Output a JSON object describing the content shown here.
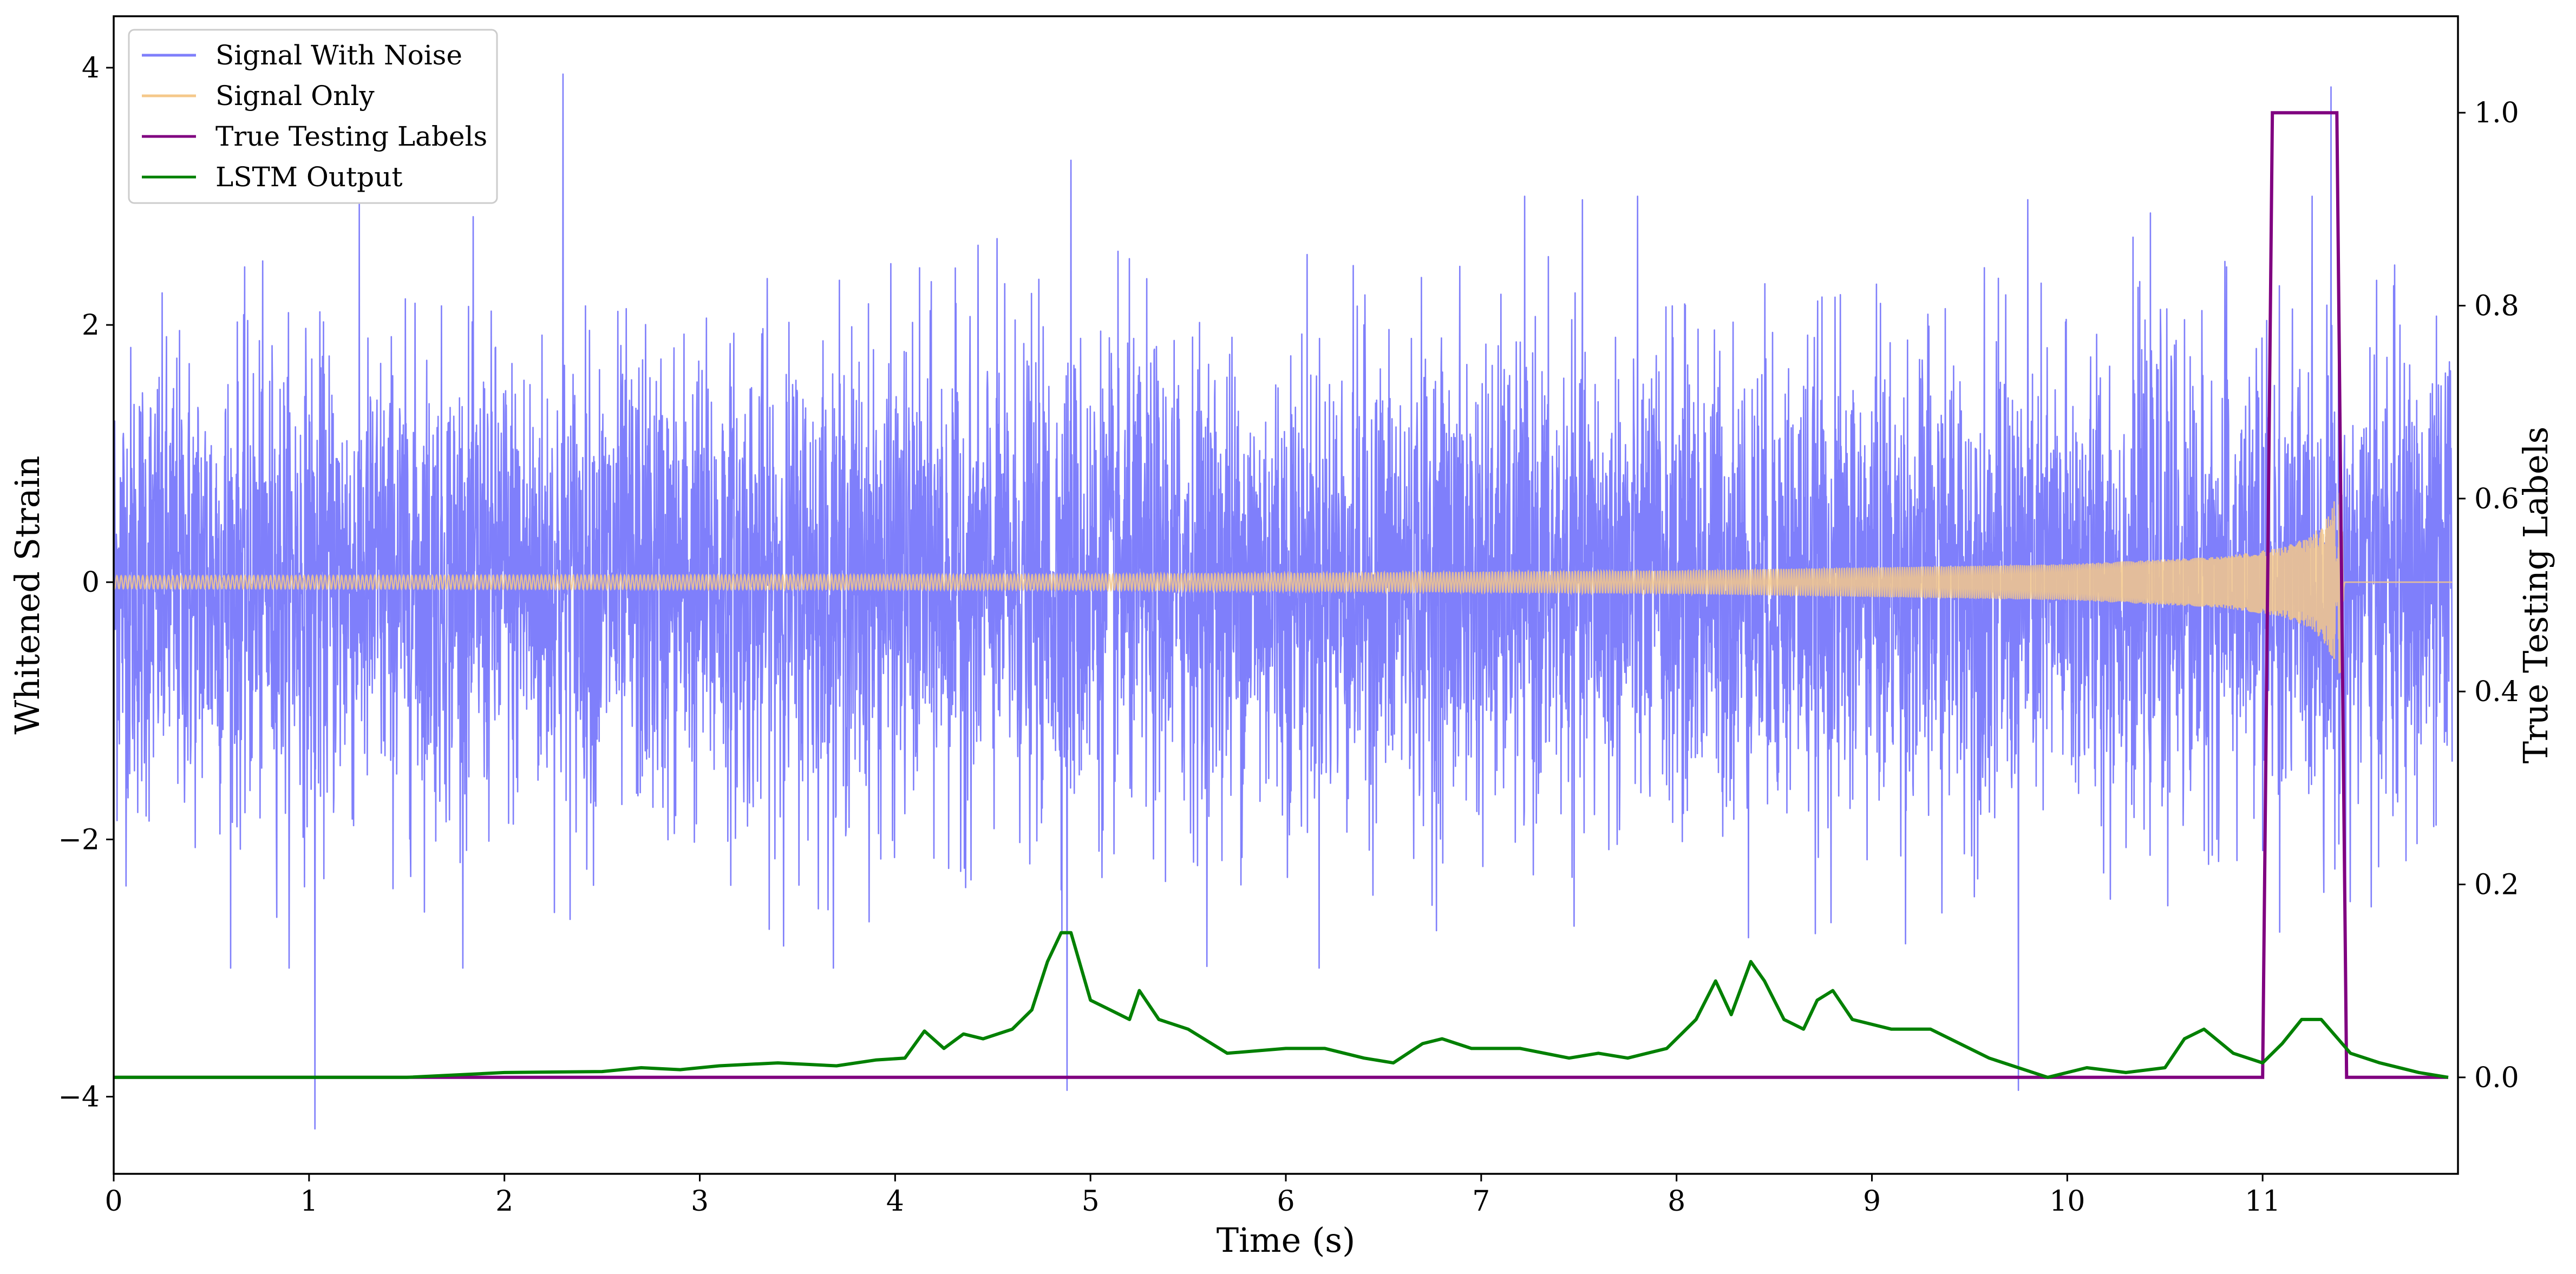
{
  "chart_data": {
    "type": "line",
    "title": "",
    "xlabel": "Time (s)",
    "ylabel": "Whitened Strain",
    "y2label": "True Testing Labels",
    "xlim": [
      0,
      12
    ],
    "ylim": [
      -4.6,
      4.4
    ],
    "y2lim": [
      -0.1,
      1.1
    ],
    "x_ticks": [
      0,
      1,
      2,
      3,
      4,
      5,
      6,
      7,
      8,
      9,
      10,
      11
    ],
    "x_tick_labels": [
      "0",
      "1",
      "2",
      "3",
      "4",
      "5",
      "6",
      "7",
      "8",
      "9",
      "10",
      "11"
    ],
    "y_ticks": [
      -4,
      -2,
      0,
      2,
      4
    ],
    "y_tick_labels": [
      "−4",
      "−2",
      "0",
      "2",
      "4"
    ],
    "y2_ticks": [
      0.0,
      0.2,
      0.4,
      0.6,
      0.8,
      1.0
    ],
    "y2_tick_labels": [
      "0.0",
      "0.2",
      "0.4",
      "0.6",
      "0.8",
      "1.0"
    ],
    "grid": false,
    "legend_position": "top-left",
    "series": [
      {
        "name": "Signal With Noise",
        "axis": "left",
        "color": "#7f7ffb",
        "description_values": "dense noise centered on 0, roughly between -2.5 and 2.5 with spikes to about 3.95 and -4.25",
        "spikes": [
          {
            "x": 1.03,
            "y": -4.25
          },
          {
            "x": 2.3,
            "y": 3.95
          },
          {
            "x": 4.9,
            "y": 3.28
          },
          {
            "x": 4.88,
            "y": -3.95
          },
          {
            "x": 9.75,
            "y": -3.95
          },
          {
            "x": 11.35,
            "y": 3.85
          }
        ]
      },
      {
        "name": "Signal Only",
        "axis": "left",
        "color": "#f5c88a",
        "envelope": {
          "x": [
            0,
            5,
            8,
            10,
            10.8,
            11.1,
            11.25,
            11.33,
            11.4,
            11.42,
            12
          ],
          "amplitude": [
            0.05,
            0.06,
            0.09,
            0.14,
            0.2,
            0.27,
            0.36,
            0.5,
            0.75,
            0.0,
            0.0
          ]
        }
      },
      {
        "name": "True Testing Labels",
        "axis": "right",
        "color": "#800080",
        "x": [
          0,
          11.0,
          11.05,
          11.38,
          11.43,
          11.95
        ],
        "values": [
          0,
          0,
          1,
          1,
          0,
          0
        ]
      },
      {
        "name": "LSTM Output",
        "axis": "right",
        "color": "#008000",
        "x": [
          0,
          1.0,
          1.5,
          2.0,
          2.5,
          2.7,
          2.9,
          3.1,
          3.4,
          3.7,
          3.9,
          4.05,
          4.15,
          4.25,
          4.35,
          4.45,
          4.6,
          4.7,
          4.78,
          4.85,
          4.9,
          5.0,
          5.1,
          5.2,
          5.25,
          5.35,
          5.5,
          5.7,
          6.0,
          6.2,
          6.4,
          6.55,
          6.7,
          6.8,
          6.95,
          7.2,
          7.45,
          7.6,
          7.75,
          7.95,
          8.1,
          8.2,
          8.28,
          8.38,
          8.45,
          8.55,
          8.65,
          8.72,
          8.8,
          8.9,
          9.1,
          9.3,
          9.4,
          9.6,
          9.9,
          10.1,
          10.3,
          10.5,
          10.6,
          10.7,
          10.85,
          11.0,
          11.1,
          11.2,
          11.3,
          11.45,
          11.6,
          11.8,
          11.95
        ],
        "values": [
          0.0,
          0.0,
          0.0,
          0.005,
          0.006,
          0.01,
          0.008,
          0.012,
          0.015,
          0.012,
          0.018,
          0.02,
          0.048,
          0.03,
          0.045,
          0.04,
          0.05,
          0.07,
          0.12,
          0.15,
          0.15,
          0.08,
          0.07,
          0.06,
          0.09,
          0.06,
          0.05,
          0.025,
          0.03,
          0.03,
          0.02,
          0.015,
          0.035,
          0.04,
          0.03,
          0.03,
          0.02,
          0.025,
          0.02,
          0.03,
          0.06,
          0.1,
          0.065,
          0.12,
          0.1,
          0.06,
          0.05,
          0.08,
          0.09,
          0.06,
          0.05,
          0.05,
          0.04,
          0.02,
          0.0,
          0.01,
          0.005,
          0.01,
          0.04,
          0.05,
          0.025,
          0.015,
          0.035,
          0.06,
          0.06,
          0.025,
          0.015,
          0.005,
          0.0
        ]
      }
    ]
  }
}
